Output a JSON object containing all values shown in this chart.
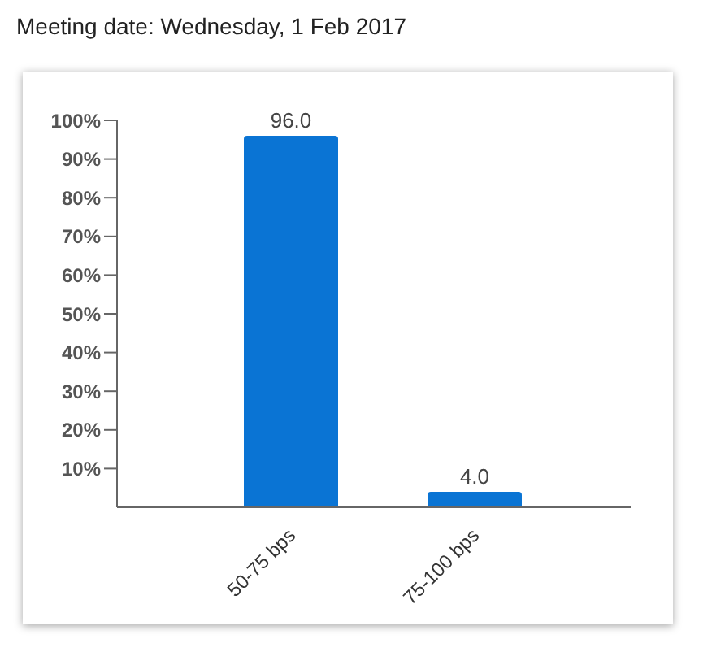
{
  "chart_data": {
    "type": "bar",
    "title": "Meeting date: Wednesday, 1 Feb 2017",
    "categories": [
      "50-75 bps",
      "75-100 bps"
    ],
    "values": [
      96.0,
      4.0
    ],
    "value_labels": [
      "96.0",
      "4.0"
    ],
    "color": "#0a74d4",
    "ylim": [
      0,
      100
    ],
    "yticks": [
      {
        "value": 10,
        "label": "10%"
      },
      {
        "value": 20,
        "label": "20%"
      },
      {
        "value": 30,
        "label": "30%"
      },
      {
        "value": 40,
        "label": "40%"
      },
      {
        "value": 50,
        "label": "50%"
      },
      {
        "value": 60,
        "label": "60%"
      },
      {
        "value": 70,
        "label": "70%"
      },
      {
        "value": 80,
        "label": "80%"
      },
      {
        "value": 90,
        "label": "90%"
      },
      {
        "value": 100,
        "label": "100%"
      }
    ],
    "grid": false
  }
}
